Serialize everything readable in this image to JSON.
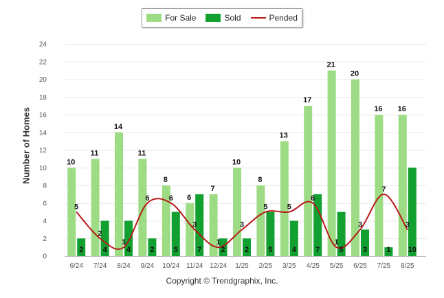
{
  "chart_data": {
    "type": "bar",
    "categories": [
      "6/24",
      "7/24",
      "8/24",
      "9/24",
      "10/24",
      "11/24",
      "12/24",
      "1/25",
      "2/25",
      "3/25",
      "4/25",
      "5/25",
      "6/25",
      "7/25",
      "8/25"
    ],
    "series": [
      {
        "name": "For Sale",
        "type": "bar",
        "color": "#9ddc84",
        "values": [
          10,
          11,
          14,
          11,
          8,
          6,
          7,
          10,
          8,
          13,
          17,
          21,
          20,
          16,
          16
        ]
      },
      {
        "name": "Sold",
        "type": "bar",
        "color": "#12a030",
        "values": [
          2,
          4,
          4,
          2,
          5,
          7,
          2,
          2,
          5,
          4,
          7,
          5,
          3,
          1,
          10
        ]
      },
      {
        "name": "Pended",
        "type": "line",
        "color": "#b81818",
        "values": [
          5,
          2,
          1,
          6,
          6,
          3,
          1,
          3,
          5,
          5,
          6,
          1,
          3,
          7,
          3
        ]
      }
    ],
    "ylabel": "Number of Homes",
    "ylim": [
      0,
      24
    ],
    "yticks": [
      0,
      2,
      4,
      6,
      8,
      10,
      12,
      14,
      16,
      18,
      20,
      22,
      24
    ],
    "grid": true,
    "legend": "top-center"
  },
  "footer": {
    "copyright": "Copyright © Trendgraphix, Inc."
  }
}
